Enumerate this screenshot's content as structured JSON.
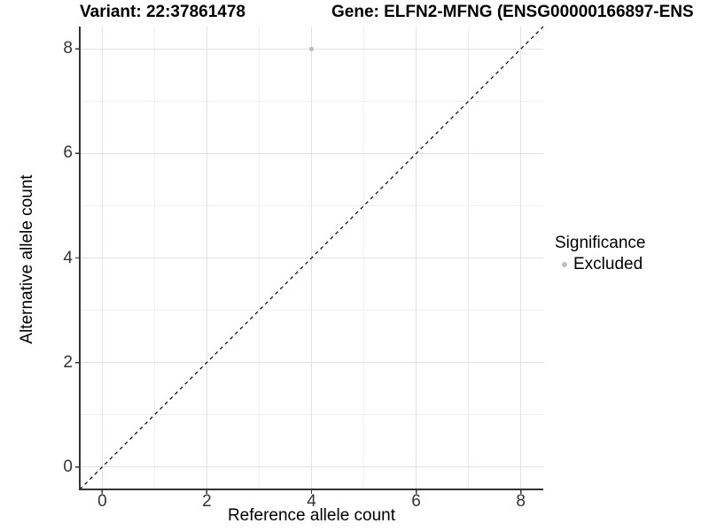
{
  "titles": {
    "variant": "Variant: 22:37861478",
    "gene": "Gene: ELFN2-MFNG (ENSG00000166897-ENS"
  },
  "chart_data": {
    "type": "scatter",
    "title_left": "Variant: 22:37861478",
    "title_right": "Gene: ELFN2-MFNG (ENSG00000166897-ENS",
    "xlabel": "Reference allele count",
    "ylabel": "Alternative allele count",
    "xlim": [
      -0.43,
      8.43
    ],
    "ylim": [
      -0.43,
      8.43
    ],
    "xticks": [
      0,
      2,
      4,
      6,
      8
    ],
    "yticks": [
      0,
      2,
      4,
      6,
      8
    ],
    "xminor": [
      1,
      3,
      5,
      7
    ],
    "yminor": [
      1,
      3,
      5,
      7
    ],
    "grid": true,
    "points": [
      {
        "x": 4,
        "y": 8,
        "significance": "Excluded"
      }
    ],
    "reference_line": {
      "type": "identity",
      "slope": 1,
      "intercept": 0,
      "style": "dashed"
    },
    "legend": {
      "title": "Significance",
      "position": "right",
      "items": [
        {
          "label": "Excluded",
          "color": "#bebebe"
        }
      ]
    },
    "colors": {
      "point": "#bebebe",
      "grid_major": "#e2e2e2",
      "grid_minor": "#f0f0f0",
      "axis_line": "#333333",
      "reference_line": "#000000",
      "background": "#ffffff",
      "tick_text": "#333333",
      "title_text": "#000000"
    }
  }
}
